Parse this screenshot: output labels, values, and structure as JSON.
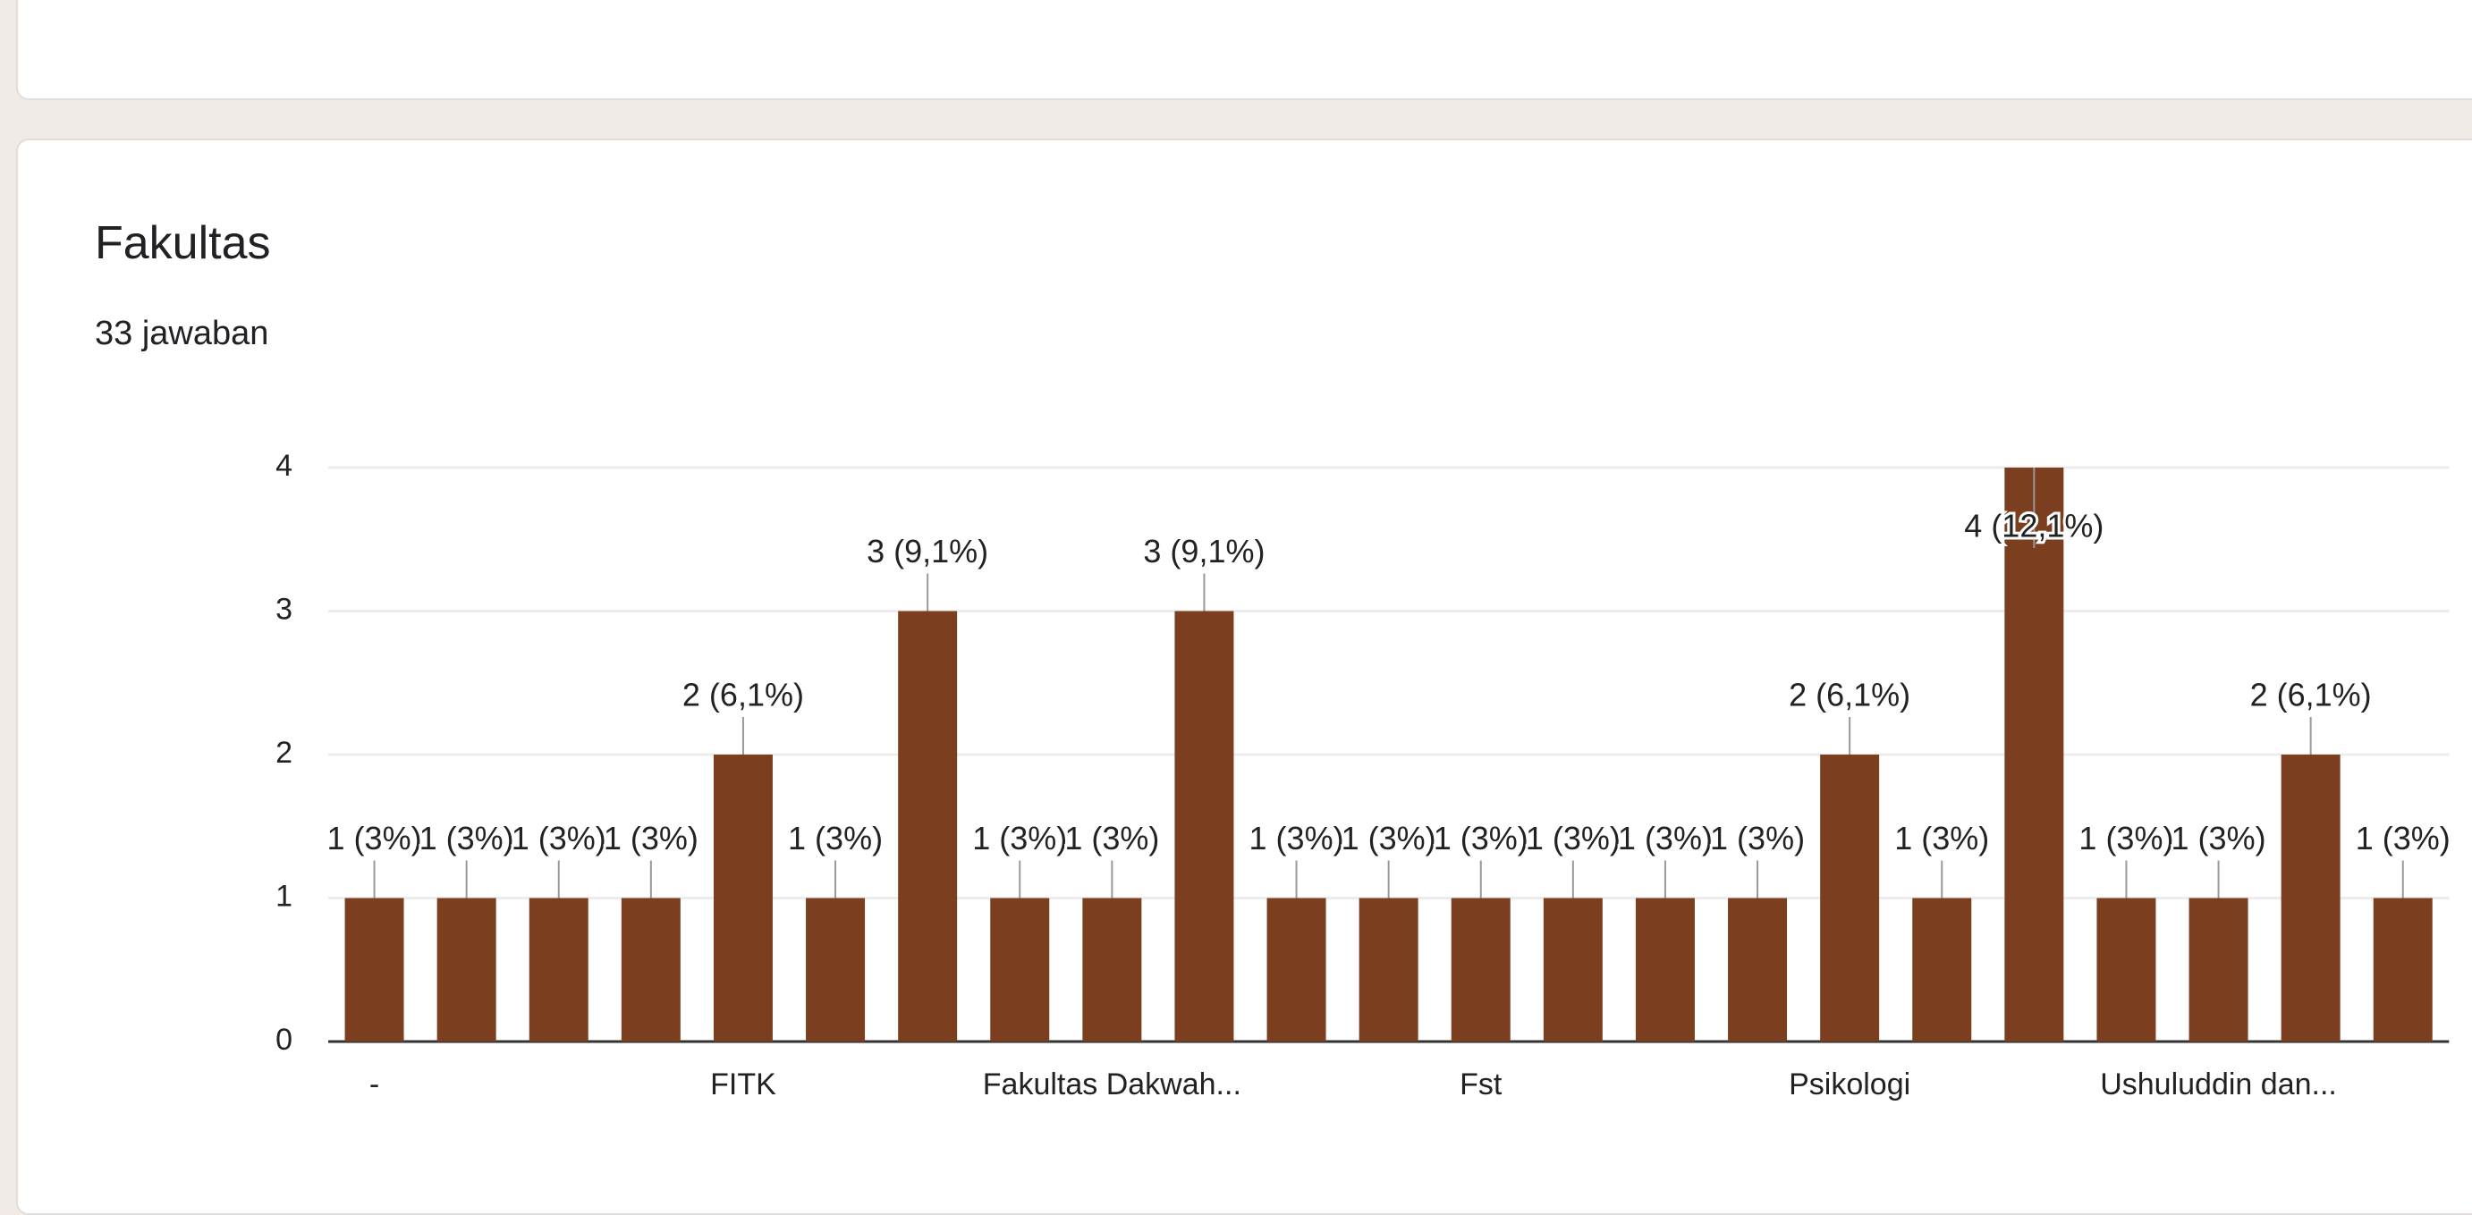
{
  "chart_data": {
    "type": "bar",
    "title": "Fakultas",
    "subtitle": "33 jawaban",
    "categories": [
      "-",
      null,
      null,
      null,
      "FITK",
      null,
      null,
      null,
      "Fakultas Dakwah...",
      null,
      null,
      null,
      "Fst",
      null,
      null,
      null,
      "Psikologi",
      null,
      null,
      null,
      "Ushuluddin dan...",
      null,
      null
    ],
    "values": [
      1,
      1,
      1,
      1,
      2,
      1,
      3,
      1,
      1,
      3,
      1,
      1,
      1,
      1,
      1,
      1,
      2,
      1,
      4,
      1,
      1,
      2,
      1
    ],
    "value_labels": [
      "1 (3%)",
      "1 (3%)",
      "1 (3%)",
      "1 (3%)",
      "2 (6,1%)",
      "1 (3%)",
      "3 (9,1%)",
      "1 (3%)",
      "1 (3%)",
      "3 (9,1%)",
      "1 (3%)",
      "1 (3%)",
      "1 (3%)",
      "1 (3%)",
      "1 (3%)",
      "1 (3%)",
      "2 (6,1%)",
      "1 (3%)",
      "4 (12,1%)",
      "1 (3%)",
      "1 (3%)",
      "2 (6,1%)",
      "1 (3%)"
    ],
    "color": "#7b3f1f",
    "ylim": [
      0,
      4
    ],
    "yticks": [
      0,
      1,
      2,
      3,
      4
    ],
    "grid": true
  }
}
